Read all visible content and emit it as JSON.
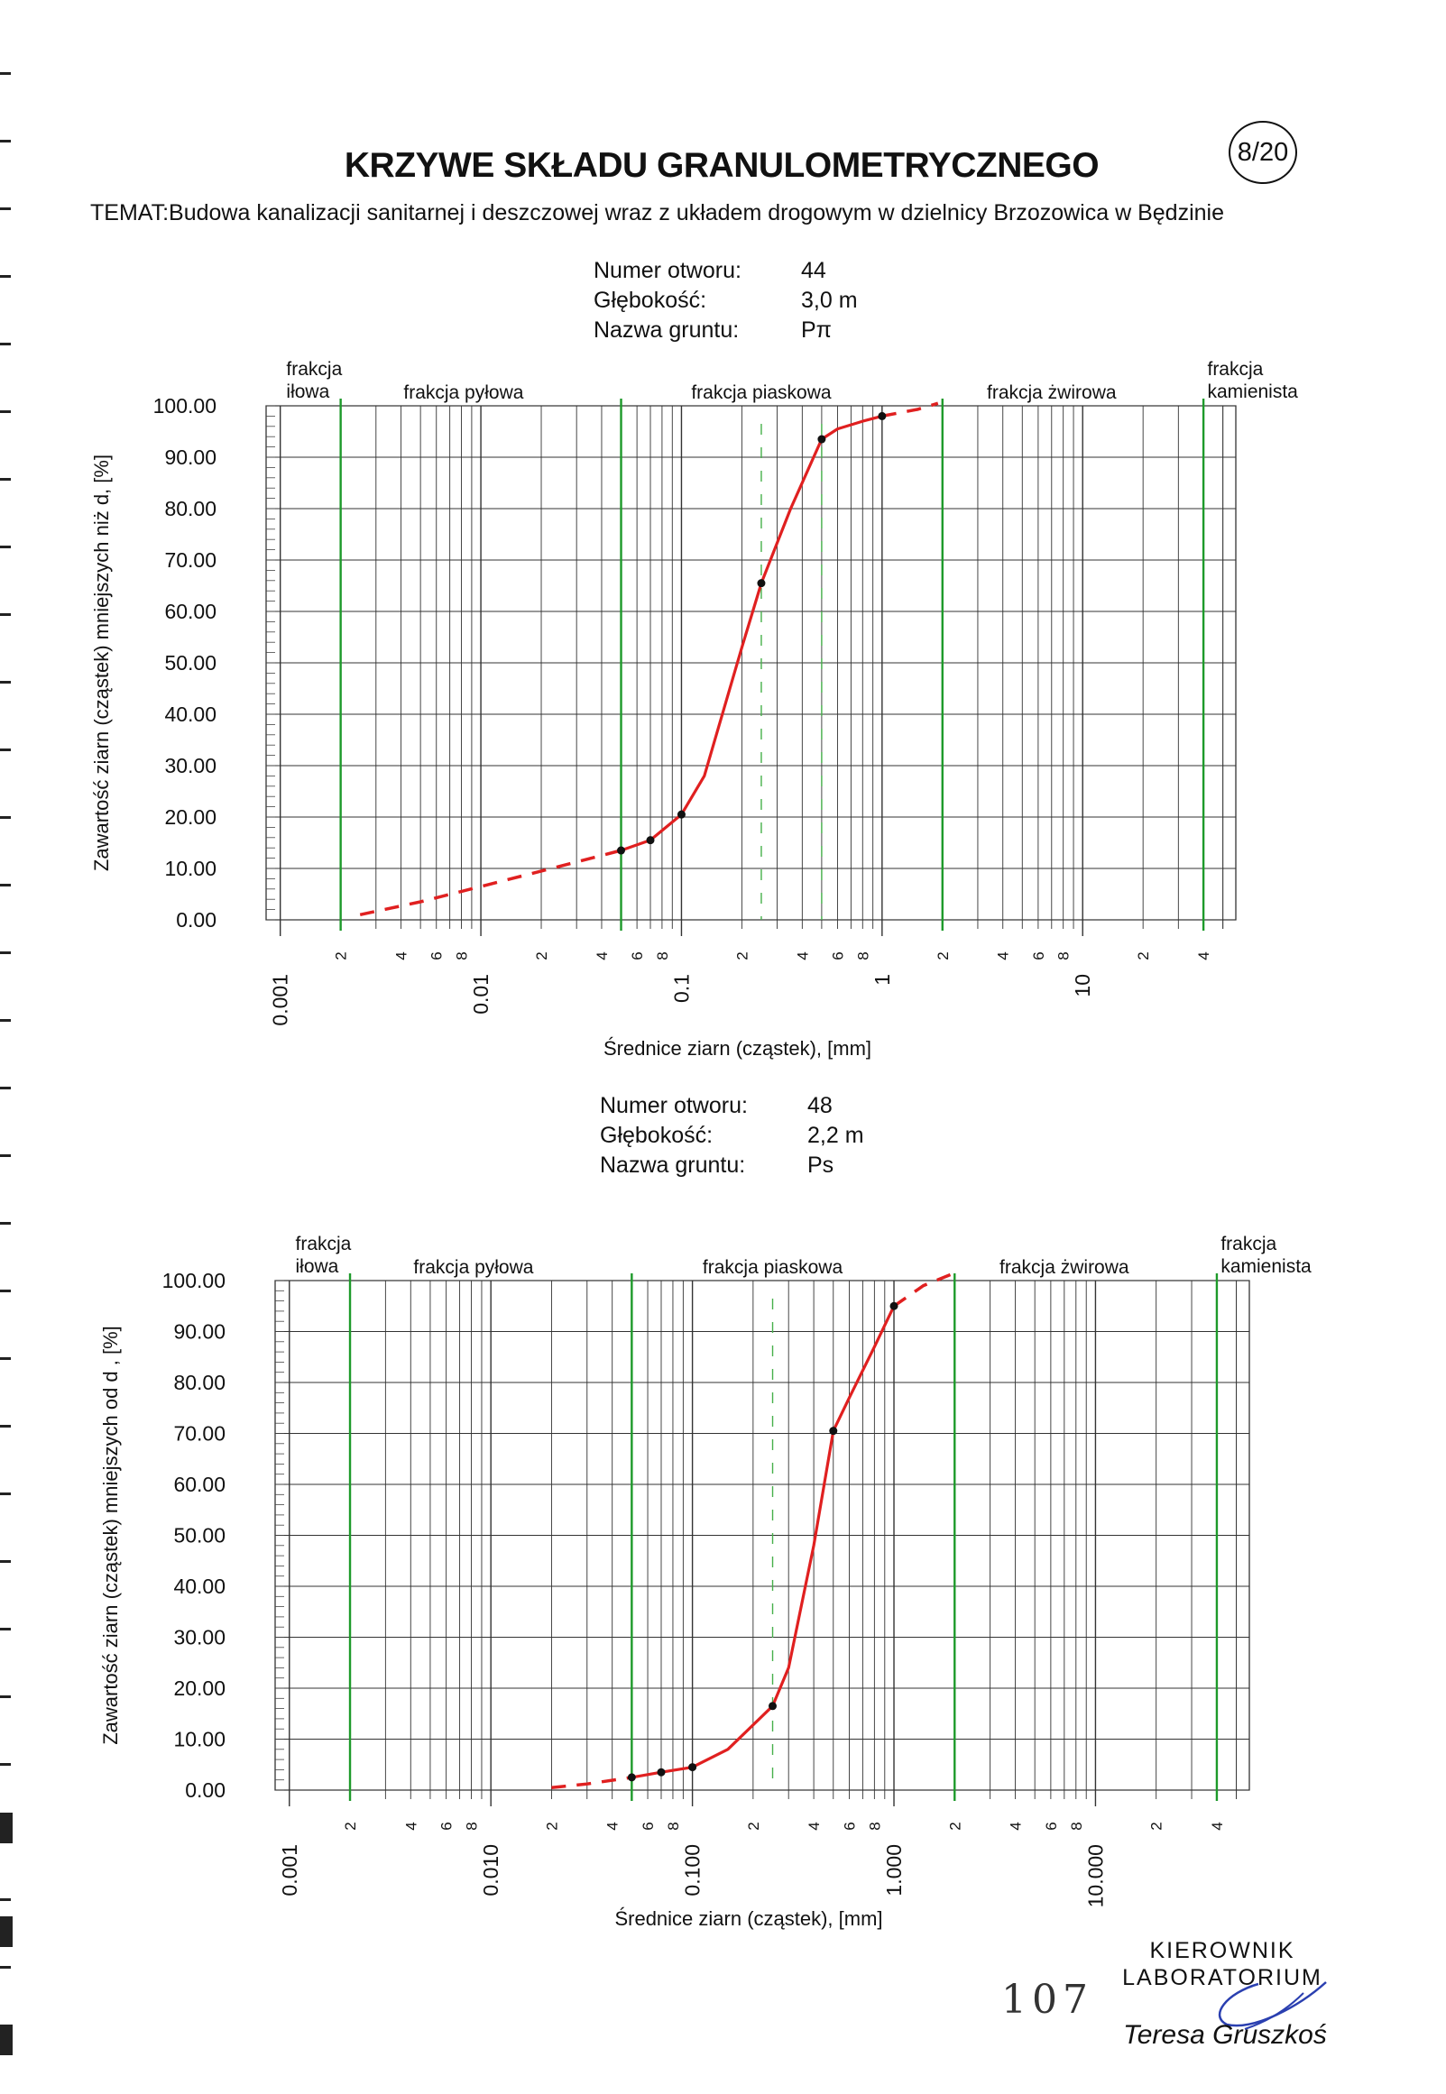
{
  "document": {
    "title": "KRZYWE SKŁADU GRANULOMETRYCZNEGO",
    "sheet": "8/20",
    "subject": "TEMAT:Budowa kanalizacji sanitarnej i deszczowej wraz z układem drogowym w dzielnicy Brzozowica w Będzinie",
    "page_number": "107",
    "lab_title_line1": "KIEROWNIK",
    "lab_title_line2": "LABORATORIUM",
    "signatory": "Teresa Gruszkoś"
  },
  "samples": [
    {
      "labels": {
        "borehole": "Numer otworu:",
        "depth": "Głębokość:",
        "soil": "Nazwa gruntu:"
      },
      "borehole": "44",
      "depth": "3,0 m",
      "soil": "Pπ"
    },
    {
      "labels": {
        "borehole": "Numer otworu:",
        "depth": "Głębokość:",
        "soil": "Nazwa gruntu:"
      },
      "borehole": "48",
      "depth": "2,2 m",
      "soil": "Ps"
    }
  ],
  "chart_data": [
    {
      "type": "line",
      "xscale": "log",
      "xlim": [
        0.001,
        50
      ],
      "ylim": [
        0,
        100
      ],
      "ylabel": "Zawartość ziarn (cząstek) mniejszych niż d, [%]",
      "xlabel": "Średnice ziarn (cząstek), [mm]",
      "y_ticks": [
        "0.00",
        "10.00",
        "20.00",
        "30.00",
        "40.00",
        "50.00",
        "60.00",
        "70.00",
        "80.00",
        "90.00",
        "100.00"
      ],
      "x_major_ticks": [
        {
          "x": 0.001,
          "label": "0.001"
        },
        {
          "x": 0.01,
          "label": "0.01"
        },
        {
          "x": 0.1,
          "label": "0.1"
        },
        {
          "x": 1,
          "label": "1"
        },
        {
          "x": 10,
          "label": "10"
        }
      ],
      "x_minor_ticks": [
        {
          "x": 0.002,
          "label": "2"
        },
        {
          "x": 0.004,
          "label": "4"
        },
        {
          "x": 0.006,
          "label": "6"
        },
        {
          "x": 0.008,
          "label": "8"
        },
        {
          "x": 0.02,
          "label": "2"
        },
        {
          "x": 0.04,
          "label": "4"
        },
        {
          "x": 0.06,
          "label": "6"
        },
        {
          "x": 0.08,
          "label": "8"
        },
        {
          "x": 0.2,
          "label": "2"
        },
        {
          "x": 0.4,
          "label": "4"
        },
        {
          "x": 0.6,
          "label": "6"
        },
        {
          "x": 0.8,
          "label": "8"
        },
        {
          "x": 2,
          "label": "2"
        },
        {
          "x": 4,
          "label": "4"
        },
        {
          "x": 6,
          "label": "6"
        },
        {
          "x": 8,
          "label": "8"
        },
        {
          "x": 20,
          "label": "2"
        },
        {
          "x": 40,
          "label": "4"
        }
      ],
      "fractions": [
        {
          "name": "frakcja\niłowa",
          "at": 0.00105
        },
        {
          "name": "frakcja pyłowa",
          "at": 0.0082
        },
        {
          "name": "frakcja piaskowa",
          "at": 0.25
        },
        {
          "name": "frakcja żwirowa",
          "at": 7
        },
        {
          "name": "frakcja\nkamienista",
          "at": 41
        }
      ],
      "fraction_boundaries": [
        0.002,
        0.05,
        2,
        40
      ],
      "dashed_verticals": [
        0.25,
        0.5
      ],
      "series_measured_x": [
        0.05,
        0.07,
        0.1,
        0.25,
        0.5,
        1.0
      ],
      "series_measured_y": [
        13.5,
        15.5,
        20.5,
        65.5,
        93.5,
        98
      ],
      "curve_x": [
        0.05,
        0.07,
        0.1,
        0.13,
        0.2,
        0.25,
        0.35,
        0.5,
        0.6,
        0.8,
        1.0
      ],
      "curve_y": [
        13.5,
        15.5,
        20.5,
        28,
        53,
        65.5,
        80,
        93.5,
        95.5,
        97,
        98
      ],
      "extrap_low_x": [
        0.0025,
        0.005,
        0.01,
        0.02,
        0.05
      ],
      "extrap_low_y": [
        1,
        3.5,
        6.5,
        9.5,
        13.5
      ],
      "extrap_high_x": [
        1.0,
        1.5,
        1.9
      ],
      "extrap_high_y": [
        98,
        99.3,
        100.5
      ]
    },
    {
      "type": "line",
      "xscale": "log",
      "xlim": [
        0.001,
        50
      ],
      "ylim": [
        0,
        100
      ],
      "ylabel": "Zawartość ziarn (cząstek) mniejszych od d , [%]",
      "xlabel": "Średnice ziarn (cząstek), [mm]",
      "y_ticks": [
        "0.00",
        "10.00",
        "20.00",
        "30.00",
        "40.00",
        "50.00",
        "60.00",
        "70.00",
        "80.00",
        "90.00",
        "100.00"
      ],
      "x_major_ticks": [
        {
          "x": 0.001,
          "label": "0.001"
        },
        {
          "x": 0.01,
          "label": "0.010"
        },
        {
          "x": 0.1,
          "label": "0.100"
        },
        {
          "x": 1,
          "label": "1.000"
        },
        {
          "x": 10,
          "label": "10.000"
        }
      ],
      "x_minor_ticks": [
        {
          "x": 0.002,
          "label": "2"
        },
        {
          "x": 0.004,
          "label": "4"
        },
        {
          "x": 0.006,
          "label": "6"
        },
        {
          "x": 0.008,
          "label": "8"
        },
        {
          "x": 0.02,
          "label": "2"
        },
        {
          "x": 0.04,
          "label": "4"
        },
        {
          "x": 0.06,
          "label": "6"
        },
        {
          "x": 0.08,
          "label": "8"
        },
        {
          "x": 0.2,
          "label": "2"
        },
        {
          "x": 0.4,
          "label": "4"
        },
        {
          "x": 0.6,
          "label": "6"
        },
        {
          "x": 0.8,
          "label": "8"
        },
        {
          "x": 2,
          "label": "2"
        },
        {
          "x": 4,
          "label": "4"
        },
        {
          "x": 6,
          "label": "6"
        },
        {
          "x": 8,
          "label": "8"
        },
        {
          "x": 20,
          "label": "2"
        },
        {
          "x": 40,
          "label": "4"
        }
      ],
      "fractions": [
        {
          "name": "frakcja\niłowa",
          "at": 0.00105
        },
        {
          "name": "frakcja pyłowa",
          "at": 0.0082
        },
        {
          "name": "frakcja piaskowa",
          "at": 0.25
        },
        {
          "name": "frakcja żwirowa",
          "at": 7
        },
        {
          "name": "frakcja\nkamienista",
          "at": 41
        }
      ],
      "fraction_boundaries": [
        0.002,
        0.05,
        2,
        40
      ],
      "dashed_verticals": [
        0.25
      ],
      "series_measured_x": [
        0.05,
        0.07,
        0.1,
        0.25,
        0.5,
        1.0
      ],
      "series_measured_y": [
        2.5,
        3.5,
        4.5,
        16.5,
        70.5,
        95
      ],
      "curve_x": [
        0.05,
        0.07,
        0.1,
        0.15,
        0.25,
        0.3,
        0.4,
        0.5,
        0.6,
        0.8,
        1.0
      ],
      "curve_y": [
        2.5,
        3.5,
        4.5,
        8,
        16.5,
        24,
        48,
        70.5,
        77,
        87,
        95
      ],
      "extrap_low_x": [
        0.02,
        0.03,
        0.05
      ],
      "extrap_low_y": [
        0.5,
        1.2,
        2.5
      ],
      "extrap_high_x": [
        1.0,
        1.4,
        2.0
      ],
      "extrap_high_y": [
        95,
        99,
        101.5
      ]
    }
  ]
}
